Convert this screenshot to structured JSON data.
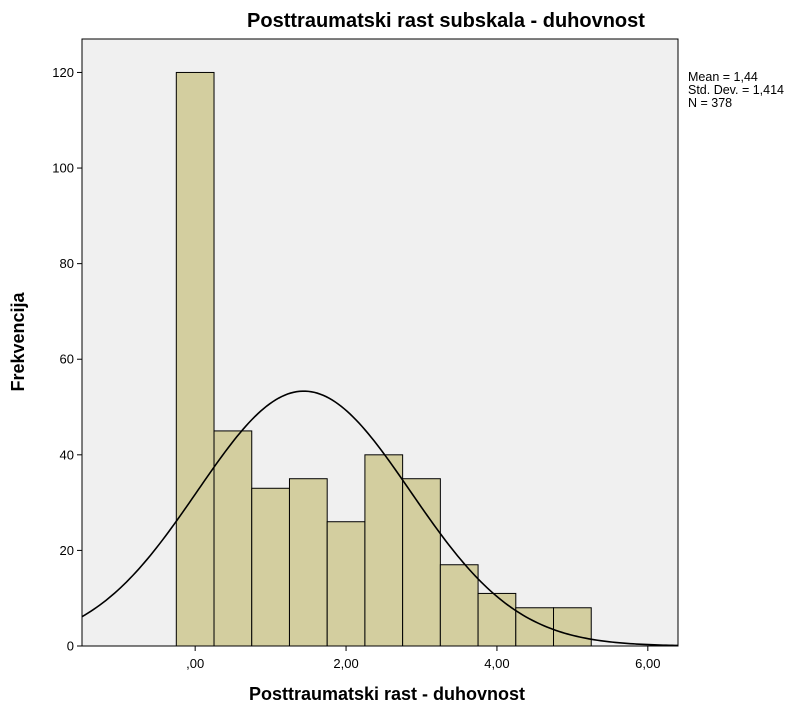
{
  "chart_data": {
    "type": "bar",
    "title": "Posttraumatski rast subskala - duhovnost",
    "xlabel": "Posttraumatski rast - duhovnost",
    "ylabel": "Frekvencija",
    "xlim": [
      -1.5,
      6.4
    ],
    "ylim": [
      0,
      127
    ],
    "x_ticks": [
      {
        "value": 0,
        "label": ",00"
      },
      {
        "value": 2,
        "label": "2,00"
      },
      {
        "value": 4,
        "label": "4,00"
      },
      {
        "value": 6,
        "label": "6,00"
      }
    ],
    "y_ticks": [
      {
        "value": 0,
        "label": "0"
      },
      {
        "value": 20,
        "label": "20"
      },
      {
        "value": 40,
        "label": "40"
      },
      {
        "value": 60,
        "label": "60"
      },
      {
        "value": 80,
        "label": "80"
      },
      {
        "value": 100,
        "label": "100"
      },
      {
        "value": 120,
        "label": "120"
      }
    ],
    "bin_width": 0.5,
    "bins": [
      {
        "start": -0.25,
        "end": 0.25,
        "value": 120
      },
      {
        "start": 0.25,
        "end": 0.75,
        "value": 45
      },
      {
        "start": 0.75,
        "end": 1.25,
        "value": 33
      },
      {
        "start": 1.25,
        "end": 1.75,
        "value": 35
      },
      {
        "start": 1.75,
        "end": 2.25,
        "value": 26
      },
      {
        "start": 2.25,
        "end": 2.75,
        "value": 40
      },
      {
        "start": 2.75,
        "end": 3.25,
        "value": 35
      },
      {
        "start": 3.25,
        "end": 3.75,
        "value": 17
      },
      {
        "start": 3.75,
        "end": 4.25,
        "value": 11
      },
      {
        "start": 4.25,
        "end": 4.75,
        "value": 8
      },
      {
        "start": 4.75,
        "end": 5.25,
        "value": 8
      }
    ],
    "normal_curve": {
      "mean": 1.44,
      "std": 1.414,
      "n": 378
    },
    "stats_text": [
      "Mean = 1,44",
      "Std. Dev. = 1,414",
      "N = 378"
    ],
    "colors": {
      "bar_fill": "#d3ce9f",
      "bar_stroke": "#000000",
      "plot_bg": "#f0f0f0",
      "curve": "#000000"
    }
  }
}
